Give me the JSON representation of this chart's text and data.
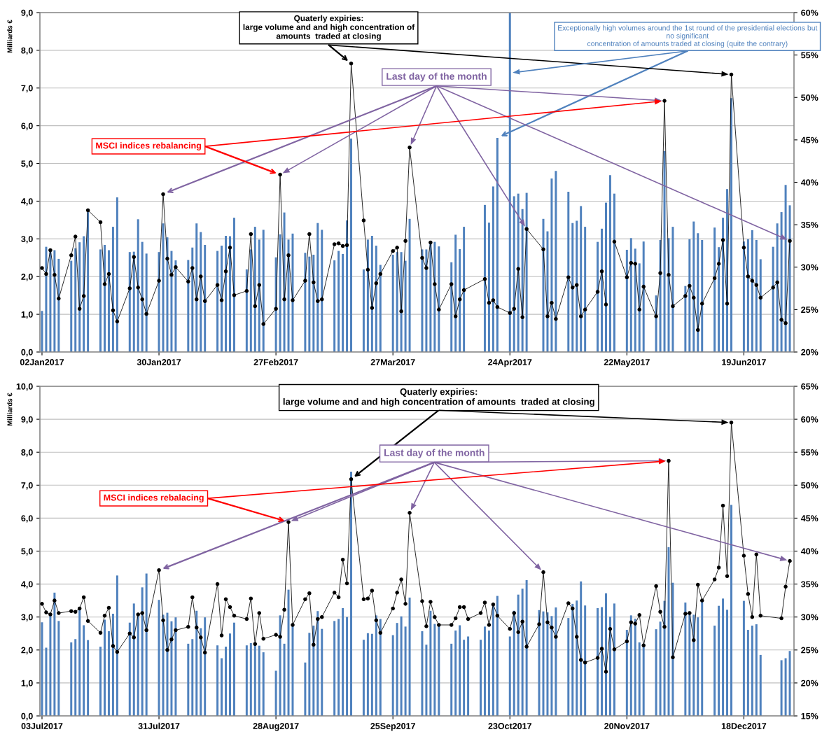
{
  "chart_data": [
    {
      "type": "bar",
      "ylabel": "Milliards €",
      "grid": "y",
      "marker": "circle",
      "line_style": "solid",
      "x": [
        "2017-01-02",
        "2017-01-03",
        "2017-01-04",
        "2017-01-05",
        "2017-01-06",
        "2017-01-09",
        "2017-01-10",
        "2017-01-11",
        "2017-01-12",
        "2017-01-13",
        "2017-01-16",
        "2017-01-17",
        "2017-01-18",
        "2017-01-19",
        "2017-01-20",
        "2017-01-23",
        "2017-01-24",
        "2017-01-25",
        "2017-01-26",
        "2017-01-27",
        "2017-01-30",
        "2017-01-31",
        "2017-02-01",
        "2017-02-02",
        "2017-02-03",
        "2017-02-06",
        "2017-02-07",
        "2017-02-08",
        "2017-02-09",
        "2017-02-10",
        "2017-02-13",
        "2017-02-14",
        "2017-02-15",
        "2017-02-16",
        "2017-02-17",
        "2017-02-20",
        "2017-02-21",
        "2017-02-22",
        "2017-02-23",
        "2017-02-24",
        "2017-02-27",
        "2017-02-28",
        "2017-03-01",
        "2017-03-02",
        "2017-03-03",
        "2017-03-06",
        "2017-03-07",
        "2017-03-08",
        "2017-03-09",
        "2017-03-10",
        "2017-03-13",
        "2017-03-14",
        "2017-03-15",
        "2017-03-16",
        "2017-03-17",
        "2017-03-20",
        "2017-03-21",
        "2017-03-22",
        "2017-03-23",
        "2017-03-24",
        "2017-03-27",
        "2017-03-28",
        "2017-03-29",
        "2017-03-30",
        "2017-03-31",
        "2017-04-03",
        "2017-04-04",
        "2017-04-05",
        "2017-04-06",
        "2017-04-07",
        "2017-04-10",
        "2017-04-11",
        "2017-04-12",
        "2017-04-13",
        "2017-04-18",
        "2017-04-19",
        "2017-04-20",
        "2017-04-21",
        "2017-04-24",
        "2017-04-25",
        "2017-04-26",
        "2017-04-27",
        "2017-04-28",
        "2017-05-02",
        "2017-05-03",
        "2017-05-04",
        "2017-05-05",
        "2017-05-08",
        "2017-05-09",
        "2017-05-10",
        "2017-05-11",
        "2017-05-12",
        "2017-05-15",
        "2017-05-16",
        "2017-05-17",
        "2017-05-18",
        "2017-05-19",
        "2017-05-22",
        "2017-05-23",
        "2017-05-24",
        "2017-05-25",
        "2017-05-26",
        "2017-05-29",
        "2017-05-30",
        "2017-05-31",
        "2017-06-01",
        "2017-06-02",
        "2017-06-05",
        "2017-06-06",
        "2017-06-07",
        "2017-06-08",
        "2017-06-09",
        "2017-06-12",
        "2017-06-13",
        "2017-06-14",
        "2017-06-15",
        "2017-06-16",
        "2017-06-19",
        "2017-06-20",
        "2017-06-21",
        "2017-06-22",
        "2017-06-23",
        "2017-06-26",
        "2017-06-27",
        "2017-06-28",
        "2017-06-29",
        "2017-06-30"
      ],
      "series": [
        {
          "color": "#4f81bd",
          "values": [
            1.09,
            2.79,
            2.72,
            2.7,
            2.47,
            2.42,
            2.75,
            2.91,
            3.07,
            3.71,
            2.72,
            2.84,
            2.7,
            3.32,
            4.1,
            2.65,
            2.66,
            3.52,
            2.92,
            2.61,
            2.65,
            3.41,
            3.04,
            2.68,
            2.43,
            2.44,
            2.77,
            3.41,
            3.18,
            2.84,
            2.68,
            2.82,
            3.08,
            3.07,
            3.56,
            2.19,
            2.72,
            3.32,
            2.98,
            3.24,
            2.51,
            3.12,
            3.7,
            2.98,
            3.14,
            2.63,
            2.53,
            2.58,
            3.42,
            3.24,
            2.43,
            2.68,
            2.6,
            3.49,
            5.66,
            2.19,
            2.98,
            3.08,
            2.82,
            2.31,
            2.58,
            2.65,
            2.65,
            2.42,
            3.53,
            2.72,
            2.72,
            2.91,
            2.92,
            2.8,
            2.38,
            3.11,
            2.73,
            3.32,
            3.9,
            3.43,
            4.39,
            5.68,
            9.0,
            4.13,
            4.2,
            3.79,
            4.22,
            3.53,
            3.2,
            4.6,
            4.8,
            4.25,
            3.42,
            3.48,
            3.87,
            3.32,
            2.92,
            3.27,
            3.96,
            4.69,
            4.2,
            2.71,
            3.02,
            2.74,
            2.35,
            2.93,
            1.5,
            2.97,
            5.33,
            3.02,
            3.32,
            1.75,
            2.99,
            3.46,
            3.15,
            2.97,
            3.3,
            2.78,
            3.56,
            4.32,
            6.73,
            2.93,
            2.99,
            3.23,
            2.97,
            2.46,
            2.79,
            3.41,
            3.71,
            4.43,
            3.89
          ]
        },
        {
          "type": "line",
          "axis": "y2",
          "color": "#000000",
          "values": [
            29.9,
            29.2,
            32.0,
            29.1,
            26.3,
            31.4,
            33.6,
            25.1,
            26.6,
            36.7,
            35.3,
            28.0,
            29.2,
            24.9,
            23.6,
            27.5,
            31.2,
            27.6,
            26.2,
            24.5,
            28.4,
            38.6,
            31.0,
            29.1,
            30.0,
            28.3,
            29.9,
            26.2,
            28.9,
            26.0,
            27.9,
            26.1,
            29.5,
            32.3,
            26.7,
            27.2,
            33.9,
            25.4,
            27.9,
            23.3,
            25.1,
            40.9,
            26.2,
            31.4,
            26.1,
            28.4,
            33.9,
            28.2,
            26.0,
            26.2,
            32.7,
            32.8,
            32.5,
            32.6,
            54.0,
            35.5,
            29.7,
            25.2,
            28.1,
            29.2,
            31.9,
            32.3,
            24.8,
            33.1,
            44.1,
            31.1,
            29.9,
            32.9,
            28.0,
            25.0,
            28.0,
            24.2,
            26.2,
            27.3,
            28.6,
            25.8,
            26.1,
            25.3,
            24.6,
            25.1,
            29.8,
            24.1,
            34.5,
            32.1,
            24.2,
            25.8,
            23.9,
            28.8,
            27.6,
            27.9,
            24.2,
            25.0,
            27.1,
            29.5,
            25.6,
            null,
            33.0,
            28.8,
            30.5,
            30.4,
            25.0,
            27.7,
            24.2,
            29.3,
            49.6,
            29.1,
            25.4,
            26.6,
            27.8,
            26.4,
            22.6,
            25.7,
            28.7,
            30.4,
            33.2,
            25.7,
            52.7,
            32.3,
            28.9,
            28.4,
            27.9,
            26.4,
            27.6,
            28.2,
            23.8,
            23.4,
            33.1
          ]
        }
      ],
      "xlim": [
        "2017-01-01T12:00",
        "2017-07-01"
      ],
      "xticks": [
        {
          "value": "2017-01-02",
          "label": "02Jan2017"
        },
        {
          "value": "2017-01-30",
          "label": "30Jan2017"
        },
        {
          "value": "2017-02-27",
          "label": "27Feb2017"
        },
        {
          "value": "2017-03-27",
          "label": "27Mar2017"
        },
        {
          "value": "2017-04-24",
          "label": "24Apr2017"
        },
        {
          "value": "2017-05-22",
          "label": "22May2017"
        },
        {
          "value": "2017-06-19",
          "label": "19Jun2017"
        }
      ],
      "ylim": [
        0,
        9
      ],
      "yticks": [
        {
          "value": 0,
          "label": "0,0"
        },
        {
          "value": 1,
          "label": "1,0"
        },
        {
          "value": 2,
          "label": "2,0"
        },
        {
          "value": 3,
          "label": "3,0"
        },
        {
          "value": 4,
          "label": "4,0"
        },
        {
          "value": 5,
          "label": "5,0"
        },
        {
          "value": 6,
          "label": "6,0"
        },
        {
          "value": 7,
          "label": "7,0"
        },
        {
          "value": 8,
          "label": "8,0"
        },
        {
          "value": 9,
          "label": "9,0"
        }
      ],
      "y2lim": [
        20,
        60
      ],
      "y2ticks": [
        {
          "value": 20,
          "label": "20%"
        },
        {
          "value": 25,
          "label": "25%"
        },
        {
          "value": 30,
          "label": "30%"
        },
        {
          "value": 35,
          "label": "35%"
        },
        {
          "value": 40,
          "label": "40%"
        },
        {
          "value": 45,
          "label": "45%"
        },
        {
          "value": 50,
          "label": "50%"
        },
        {
          "value": 55,
          "label": "55%"
        },
        {
          "value": 60,
          "label": "60%"
        }
      ],
      "annotations": [
        {
          "text": "Quaterly expiries:\nlarge volume and and high concentration of\namounts  traded at closing",
          "x": "2017-03-17",
          "y": 7.65
        },
        {
          "text": "Exceptionally high volumes around the 1st round of the presidential elections but\nno significant\nconcentration of amounts traded at closing (quite the contrary)",
          "x": "2017-04-21",
          "y": 5.68
        },
        {
          "text": "Last day of the month",
          "x": "2017-01-31",
          "y": 4.19
        },
        {
          "text": "MSCI indices rebalancing",
          "x": "2017-02-28",
          "y": 4.7
        }
      ]
    },
    {
      "type": "bar",
      "ylabel": "Milliards €",
      "grid": "y",
      "marker": "circle",
      "line_style": "solid",
      "x": [
        "2017-07-03",
        "2017-07-04",
        "2017-07-05",
        "2017-07-06",
        "2017-07-07",
        "2017-07-10",
        "2017-07-11",
        "2017-07-12",
        "2017-07-13",
        "2017-07-14",
        "2017-07-17",
        "2017-07-18",
        "2017-07-19",
        "2017-07-20",
        "2017-07-21",
        "2017-07-24",
        "2017-07-25",
        "2017-07-26",
        "2017-07-27",
        "2017-07-28",
        "2017-07-31",
        "2017-08-01",
        "2017-08-02",
        "2017-08-03",
        "2017-08-04",
        "2017-08-07",
        "2017-08-08",
        "2017-08-09",
        "2017-08-10",
        "2017-08-11",
        "2017-08-14",
        "2017-08-15",
        "2017-08-16",
        "2017-08-17",
        "2017-08-18",
        "2017-08-21",
        "2017-08-22",
        "2017-08-23",
        "2017-08-24",
        "2017-08-25",
        "2017-08-28",
        "2017-08-29",
        "2017-08-30",
        "2017-08-31",
        "2017-09-01",
        "2017-09-04",
        "2017-09-05",
        "2017-09-06",
        "2017-09-07",
        "2017-09-08",
        "2017-09-11",
        "2017-09-12",
        "2017-09-13",
        "2017-09-14",
        "2017-09-15",
        "2017-09-18",
        "2017-09-19",
        "2017-09-20",
        "2017-09-21",
        "2017-09-22",
        "2017-09-25",
        "2017-09-26",
        "2017-09-27",
        "2017-09-28",
        "2017-09-29",
        "2017-10-02",
        "2017-10-03",
        "2017-10-04",
        "2017-10-05",
        "2017-10-06",
        "2017-10-09",
        "2017-10-10",
        "2017-10-11",
        "2017-10-12",
        "2017-10-13",
        "2017-10-16",
        "2017-10-17",
        "2017-10-18",
        "2017-10-19",
        "2017-10-20",
        "2017-10-23",
        "2017-10-24",
        "2017-10-25",
        "2017-10-26",
        "2017-10-27",
        "2017-10-30",
        "2017-10-31",
        "2017-11-01",
        "2017-11-02",
        "2017-11-03",
        "2017-11-06",
        "2017-11-07",
        "2017-11-08",
        "2017-11-09",
        "2017-11-10",
        "2017-11-13",
        "2017-11-14",
        "2017-11-15",
        "2017-11-16",
        "2017-11-17",
        "2017-11-20",
        "2017-11-21",
        "2017-11-22",
        "2017-11-23",
        "2017-11-24",
        "2017-11-27",
        "2017-11-28",
        "2017-11-29",
        "2017-11-30",
        "2017-12-01",
        "2017-12-04",
        "2017-12-05",
        "2017-12-06",
        "2017-12-07",
        "2017-12-08",
        "2017-12-11",
        "2017-12-12",
        "2017-12-13",
        "2017-12-14",
        "2017-12-15",
        "2017-12-18",
        "2017-12-19",
        "2017-12-20",
        "2017-12-21",
        "2017-12-22",
        "2017-12-27",
        "2017-12-28",
        "2017-12-29"
      ],
      "series": [
        {
          "color": "#4f81bd",
          "values": [
            2.84,
            2.07,
            3.05,
            3.74,
            2.88,
            2.23,
            2.33,
            3.25,
            2.75,
            2.3,
            2.1,
            2.92,
            2.57,
            3.1,
            4.26,
            2.83,
            3.41,
            3.08,
            3.9,
            4.32,
            3.52,
            3.07,
            3.13,
            2.87,
            2.99,
            2.19,
            2.33,
            3.19,
            2.66,
            2.99,
            2.14,
            1.75,
            2.1,
            2.5,
            2.83,
            2.14,
            2.21,
            2.23,
            2.13,
            1.93,
            1.37,
            3.05,
            2.19,
            3.83,
            2.72,
            1.62,
            2.52,
            2.74,
            3.18,
            2.64,
            2.88,
            2.94,
            3.27,
            3.0,
            7.41,
            2.31,
            2.51,
            2.49,
            3.05,
            2.94,
            2.45,
            2.82,
            3.02,
            2.71,
            3.59,
            2.57,
            2.16,
            3.19,
            2.79,
            2.77,
            2.19,
            2.59,
            2.75,
            2.31,
            2.41,
            2.31,
            2.71,
            2.59,
            3.35,
            3.64,
            2.41,
            3.19,
            3.68,
            3.86,
            4.12,
            3.21,
            3.17,
            3.14,
            3.03,
            3.29,
            2.97,
            3.4,
            3.5,
            4.08,
            3.35,
            3.27,
            3.3,
            3.72,
            3.01,
            3.41,
            2.61,
            3.05,
            2.95,
            2.23,
            2.17,
            2.63,
            2.86,
            3.49,
            5.12,
            4.04,
            3.44,
            3.17,
            3.07,
            2.99,
            3.52,
            2.74,
            3.34,
            3.56,
            3.22,
            6.4,
            3.49,
            2.61,
            2.74,
            2.78,
            1.85,
            1.69,
            1.75,
            1.97
          ]
        },
        {
          "type": "line",
          "axis": "y2",
          "color": "#000000",
          "values": [
            32.0,
            30.7,
            30.4,
            32.5,
            30.6,
            30.9,
            30.8,
            31.3,
            33.0,
            29.4,
            27.6,
            30.2,
            31.4,
            25.6,
            24.7,
            27.5,
            26.9,
            30.4,
            30.6,
            28.0,
            37.1,
            29.5,
            25.0,
            26.6,
            28.0,
            28.5,
            33.0,
            28.4,
            26.9,
            24.6,
            35.0,
            27.2,
            32.7,
            31.5,
            30.2,
            29.7,
            32.8,
            25.9,
            30.6,
            26.7,
            27.3,
            27.0,
            31.1,
            44.4,
            28.8,
            32.7,
            33.6,
            25.8,
            29.7,
            30.0,
            33.7,
            33.0,
            38.7,
            35.1,
            50.9,
            32.7,
            32.8,
            34.0,
            29.5,
            27.6,
            31.3,
            33.7,
            35.7,
            32.0,
            45.8,
            32.4,
            28.6,
            32.3,
            30.0,
            28.8,
            28.8,
            29.8,
            31.5,
            31.5,
            29.7,
            30.6,
            32.2,
            28.8,
            31.9,
            30.2,
            28.2,
            30.6,
            27.7,
            29.3,
            25.5,
            28.9,
            36.8,
            29.2,
            28.4,
            27.0,
            32.1,
            31.3,
            27.0,
            23.5,
            23.1,
            23.8,
            25.2,
            21.7,
            28.2,
            25.1,
            26.3,
            29.2,
            29.0,
            30.3,
            25.7,
            34.7,
            30.8,
            28.5,
            53.7,
            23.9,
            30.5,
            30.6,
            26.5,
            34.9,
            32.5,
            35.7,
            37.5,
            46.9,
            36.2,
            59.5,
            39.3,
            33.5,
            30.0,
            39.5,
            30.2,
            29.8,
            34.6,
            38.5
          ]
        }
      ],
      "xlim": [
        "2017-07-02T12:00",
        "2017-12-30"
      ],
      "xticks": [
        {
          "value": "2017-07-03",
          "label": "03Jul2017"
        },
        {
          "value": "2017-07-31",
          "label": "31Jul2017"
        },
        {
          "value": "2017-08-28",
          "label": "28Aug2017"
        },
        {
          "value": "2017-09-25",
          "label": "25Sep2017"
        },
        {
          "value": "2017-10-23",
          "label": "23Oct2017"
        },
        {
          "value": "2017-11-20",
          "label": "20Nov2017"
        },
        {
          "value": "2017-12-18",
          "label": "18Dec2017"
        }
      ],
      "ylim": [
        0,
        10
      ],
      "yticks": [
        {
          "value": 0,
          "label": "0,0"
        },
        {
          "value": 1,
          "label": "1,0"
        },
        {
          "value": 2,
          "label": "2,0"
        },
        {
          "value": 3,
          "label": "3,0"
        },
        {
          "value": 4,
          "label": "4,0"
        },
        {
          "value": 5,
          "label": "5,0"
        },
        {
          "value": 6,
          "label": "6,0"
        },
        {
          "value": 7,
          "label": "7,0"
        },
        {
          "value": 8,
          "label": "8,0"
        },
        {
          "value": 9,
          "label": "9,0"
        },
        {
          "value": 10,
          "label": "10,0"
        }
      ],
      "y2lim": [
        15,
        65
      ],
      "y2ticks": [
        {
          "value": 15,
          "label": "15%"
        },
        {
          "value": 20,
          "label": "20%"
        },
        {
          "value": 25,
          "label": "25%"
        },
        {
          "value": 30,
          "label": "30%"
        },
        {
          "value": 35,
          "label": "35%"
        },
        {
          "value": 40,
          "label": "40%"
        },
        {
          "value": 45,
          "label": "45%"
        },
        {
          "value": 50,
          "label": "50%"
        },
        {
          "value": 55,
          "label": "55%"
        },
        {
          "value": 60,
          "label": "60%"
        },
        {
          "value": 65,
          "label": "65%"
        }
      ],
      "annotations": [
        {
          "text": "Quaterly expiries:\nlarge volume and and high concentration of amounts  traded at closing",
          "x": "2017-09-15",
          "y": 7.18
        },
        {
          "text": "Last day of the month",
          "x": "2017-07-31",
          "y": 4.42
        },
        {
          "text": "MSCI indices rebalacing",
          "x": "2017-08-31",
          "y": 5.88
        }
      ]
    }
  ]
}
